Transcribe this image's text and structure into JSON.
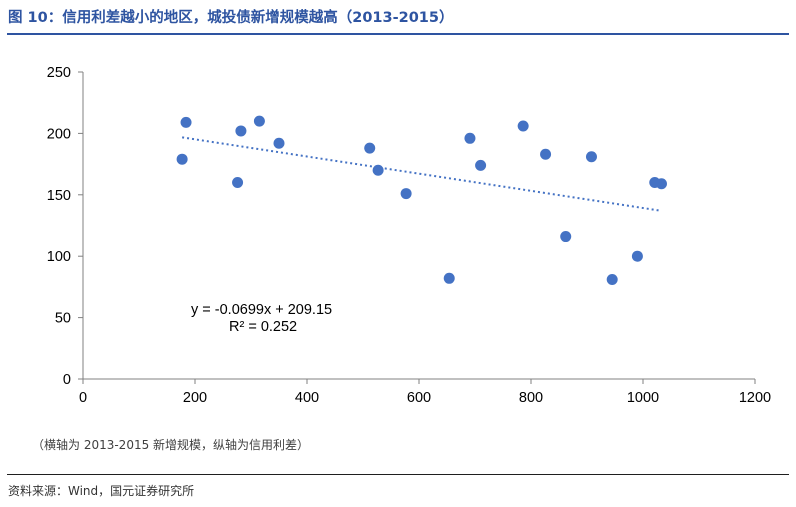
{
  "header": {
    "title": "图 10：信用利差越小的地区，城投债新增规模越高（2013-2015）"
  },
  "chart_data": {
    "type": "scatter",
    "title": "",
    "xlabel": "",
    "ylabel": "",
    "xlim": [
      0,
      1200
    ],
    "ylim": [
      0,
      250
    ],
    "x_ticks": [
      "0",
      "200",
      "400",
      "600",
      "800",
      "1000",
      "1200"
    ],
    "y_ticks": [
      "0",
      "50",
      "100",
      "150",
      "200",
      "250"
    ],
    "grid": false,
    "point_color": "#4472C4",
    "trendline_color": "#4472C4",
    "points": [
      {
        "x": 177,
        "y": 179
      },
      {
        "x": 184,
        "y": 209
      },
      {
        "x": 276,
        "y": 160
      },
      {
        "x": 282,
        "y": 202
      },
      {
        "x": 315,
        "y": 210
      },
      {
        "x": 350,
        "y": 192
      },
      {
        "x": 512,
        "y": 188
      },
      {
        "x": 527,
        "y": 170
      },
      {
        "x": 577,
        "y": 151
      },
      {
        "x": 654,
        "y": 82
      },
      {
        "x": 691,
        "y": 196
      },
      {
        "x": 710,
        "y": 174
      },
      {
        "x": 786,
        "y": 206
      },
      {
        "x": 826,
        "y": 183
      },
      {
        "x": 862,
        "y": 116
      },
      {
        "x": 908,
        "y": 181
      },
      {
        "x": 945,
        "y": 81
      },
      {
        "x": 990,
        "y": 100
      },
      {
        "x": 1021,
        "y": 160
      },
      {
        "x": 1033,
        "y": 159
      }
    ],
    "trendline": {
      "slope": -0.0699,
      "intercept": 209.15,
      "x_start": 177,
      "x_end": 1033
    },
    "equation": "y = -0.0699x + 209.15",
    "r_squared": "R² = 0.252"
  },
  "footer": {
    "note": "（横轴为 2013-2015 新增规模，纵轴为信用利差）",
    "source": "资料来源：Wind，国元证券研究所"
  }
}
